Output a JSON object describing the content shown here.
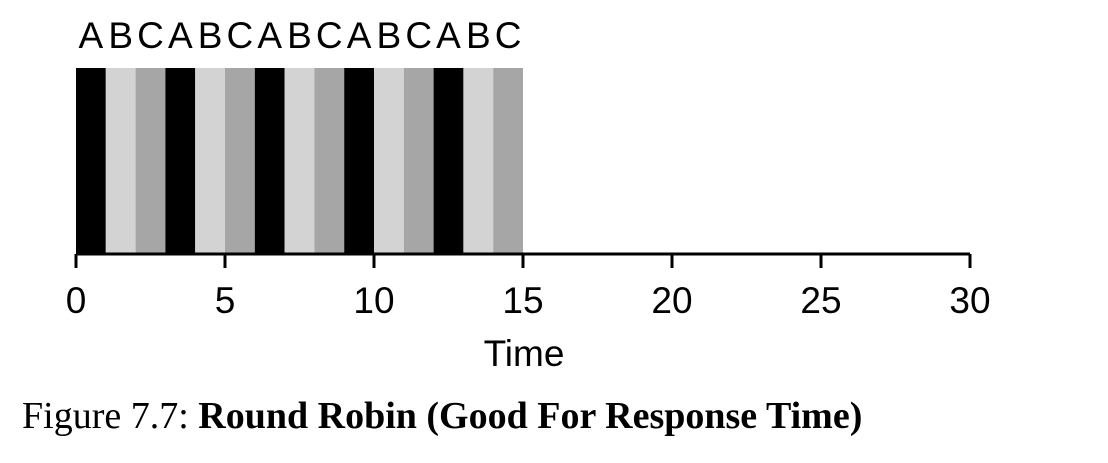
{
  "chart_data": {
    "type": "timeline",
    "segments": [
      {
        "label": "A",
        "start": 0,
        "end": 1
      },
      {
        "label": "B",
        "start": 1,
        "end": 2
      },
      {
        "label": "C",
        "start": 2,
        "end": 3
      },
      {
        "label": "A",
        "start": 3,
        "end": 4
      },
      {
        "label": "B",
        "start": 4,
        "end": 5
      },
      {
        "label": "C",
        "start": 5,
        "end": 6
      },
      {
        "label": "A",
        "start": 6,
        "end": 7
      },
      {
        "label": "B",
        "start": 7,
        "end": 8
      },
      {
        "label": "C",
        "start": 8,
        "end": 9
      },
      {
        "label": "A",
        "start": 9,
        "end": 10
      },
      {
        "label": "B",
        "start": 10,
        "end": 11
      },
      {
        "label": "C",
        "start": 11,
        "end": 12
      },
      {
        "label": "A",
        "start": 12,
        "end": 13
      },
      {
        "label": "B",
        "start": 13,
        "end": 14
      },
      {
        "label": "C",
        "start": 14,
        "end": 15
      }
    ],
    "colors": {
      "A": "#000000",
      "B": "#d3d3d3",
      "C": "#a6a6a6"
    },
    "xlabel": "Time",
    "xlim": [
      0,
      30
    ],
    "xticks": [
      0,
      5,
      10,
      15,
      20,
      25,
      30
    ]
  },
  "caption": {
    "label": "Figure 7.7:",
    "text": "Round Robin (Good For Response Time)"
  }
}
